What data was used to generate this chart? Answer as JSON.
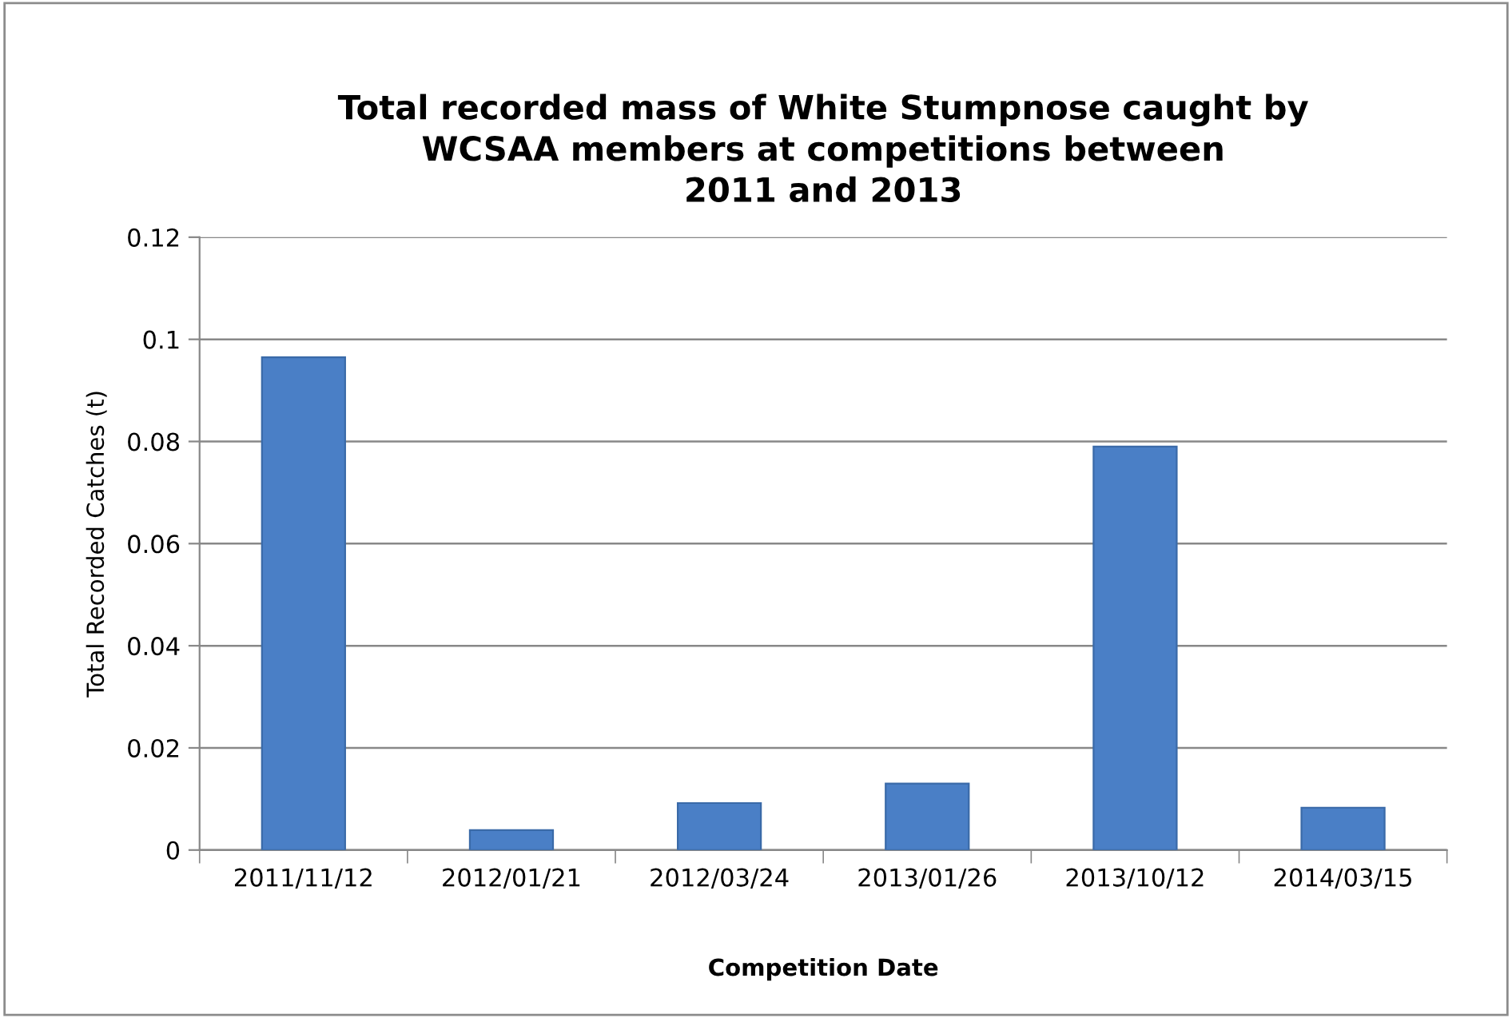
{
  "chart_data": {
    "type": "bar",
    "title": "Total recorded mass of White Stumpnose caught by\nWCSAA members at competitions between\n2011 and 2013",
    "xlabel": "Competition Date",
    "ylabel": "Total Recorded Catches (t)",
    "categories": [
      "2011/11/12",
      "2012/01/21",
      "2012/03/24",
      "2013/01/26",
      "2013/10/12",
      "2014/03/15"
    ],
    "values": [
      0.0965,
      0.0039,
      0.0092,
      0.013,
      0.079,
      0.0083
    ],
    "color": "#4a7fc6",
    "ylim": [
      0,
      0.12
    ],
    "yticks": [
      0,
      0.02,
      0.04,
      0.06,
      0.08,
      0.1,
      0.12
    ],
    "grid": "y"
  }
}
